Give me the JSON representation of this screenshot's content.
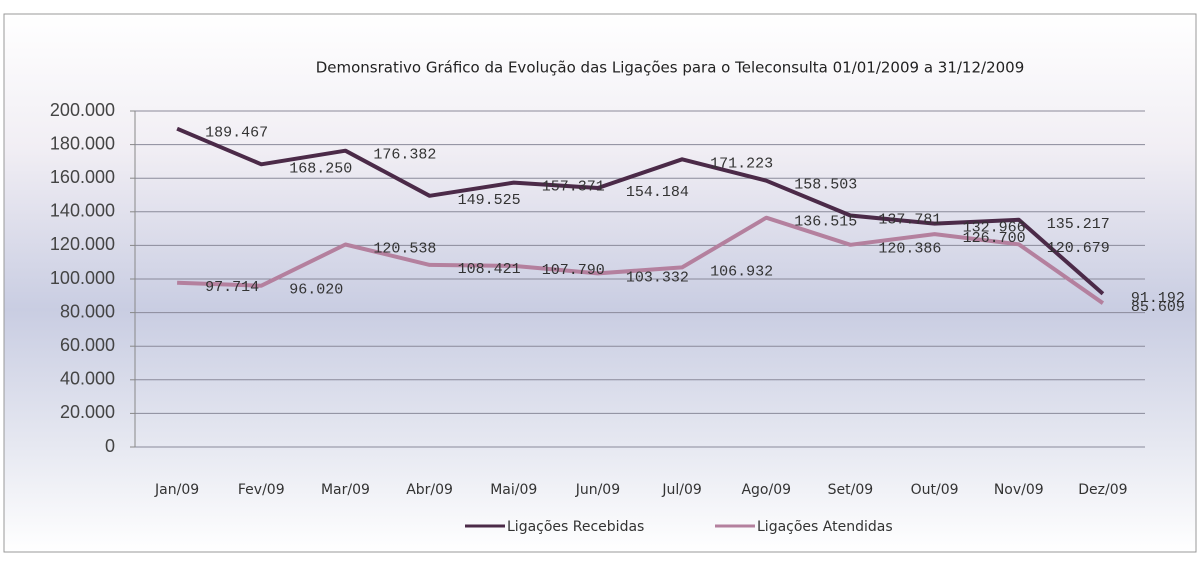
{
  "chart_data": {
    "type": "line",
    "title": "Demonsrativo Gráfico da Evolução das Ligações para o Teleconsulta 01/01/2009 a 31/12/2009",
    "categories": [
      "Jan/09",
      "Fev/09",
      "Mar/09",
      "Abr/09",
      "Mai/09",
      "Jun/09",
      "Jul/09",
      "Ago/09",
      "Set/09",
      "Out/09",
      "Nov/09",
      "Dez/09"
    ],
    "series": [
      {
        "name": "Ligações Recebidas",
        "color": "#4b2a48",
        "values": [
          189467,
          168250,
          176382,
          149525,
          157371,
          154184,
          171223,
          158503,
          137781,
          132966,
          135217,
          91192
        ],
        "value_labels": [
          "189.467",
          "168.250",
          "176.382",
          "149.525",
          "157.371",
          "154.184",
          "171.223",
          "158.503",
          "137.781",
          "132.966",
          "135.217",
          "91.192"
        ]
      },
      {
        "name": "Ligações Atendidas",
        "color": "#b4809e",
        "values": [
          97714,
          96020,
          120538,
          108421,
          107790,
          103332,
          106932,
          136515,
          120386,
          126700,
          120679,
          85609
        ],
        "value_labels": [
          "97.714",
          "96.020",
          "120.538",
          "108.421",
          "107.790",
          "103.332",
          "106.932",
          "136.515",
          "120.386",
          "126.700",
          "120.679",
          "85.609"
        ]
      }
    ],
    "ylim": [
      0,
      200000
    ],
    "yticks": [
      0,
      {
        "value": 20000,
        "label": "20.000"
      },
      {
        "value": 40000,
        "label": "40.000"
      },
      {
        "value": 60000,
        "label": "60.000"
      },
      {
        "value": 80000,
        "label": "80.000"
      },
      {
        "value": 100000,
        "label": "100.000"
      },
      {
        "value": 120000,
        "label": "120.000"
      },
      {
        "value": 140000,
        "label": "140.000"
      },
      {
        "value": 160000,
        "label": "160.000"
      },
      {
        "value": 180000,
        "label": "180.000"
      },
      {
        "value": 200000,
        "label": "200.000"
      }
    ],
    "grid": true,
    "legend": "bottom"
  }
}
